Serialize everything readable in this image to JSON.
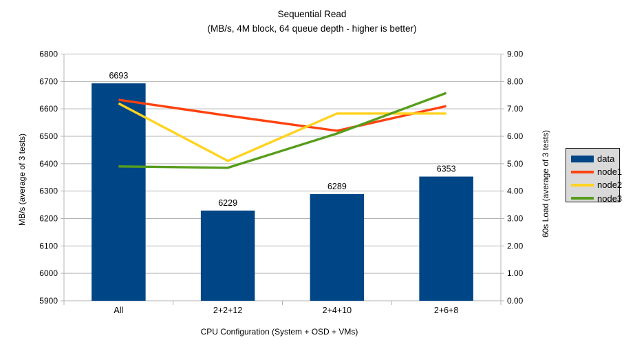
{
  "chart_data": {
    "type": "bar",
    "subtype": "combo-bar-line-dual-axis",
    "title": "Sequential Read",
    "subtitle": "(MB/s, 4M block, 64 queue depth - higher is better)",
    "categories": [
      "All",
      "2+2+12",
      "2+4+10",
      "2+6+8"
    ],
    "bar_series": {
      "name": "data",
      "axis": "left",
      "color": "#004586",
      "values": [
        6693,
        6229,
        6289,
        6353
      ],
      "value_labels": [
        "6693",
        "6229",
        "6289",
        "6353"
      ]
    },
    "line_series": [
      {
        "name": "node1",
        "axis": "right",
        "color": "#FF420E",
        "values": [
          7.33,
          6.75,
          6.2,
          7.1
        ]
      },
      {
        "name": "node2",
        "axis": "right",
        "color": "#FFD320",
        "values": [
          7.2,
          5.1,
          6.83,
          6.83
        ]
      },
      {
        "name": "node3",
        "axis": "right",
        "color": "#579D1C",
        "values": [
          4.9,
          4.85,
          6.1,
          7.58
        ]
      }
    ],
    "left_axis": {
      "label": "MB/s (average of 3 tests)",
      "min": 5900,
      "max": 6800,
      "step": 100,
      "decimals": 0
    },
    "right_axis": {
      "label": "60s Load (average of 3 tests)",
      "min": 0,
      "max": 9,
      "step": 1,
      "decimals": 2
    },
    "x_axis": {
      "label": "CPU Configuration (System + OSD + VMs)"
    },
    "legend": {
      "position": "right"
    },
    "style": {
      "grid": "horizontal",
      "grid_color": "#b3b3b3",
      "background": "#ffffff",
      "legend_bg": "#d9d9d9",
      "legend_border": "#1a1a1a",
      "text_color": "#000000"
    }
  }
}
